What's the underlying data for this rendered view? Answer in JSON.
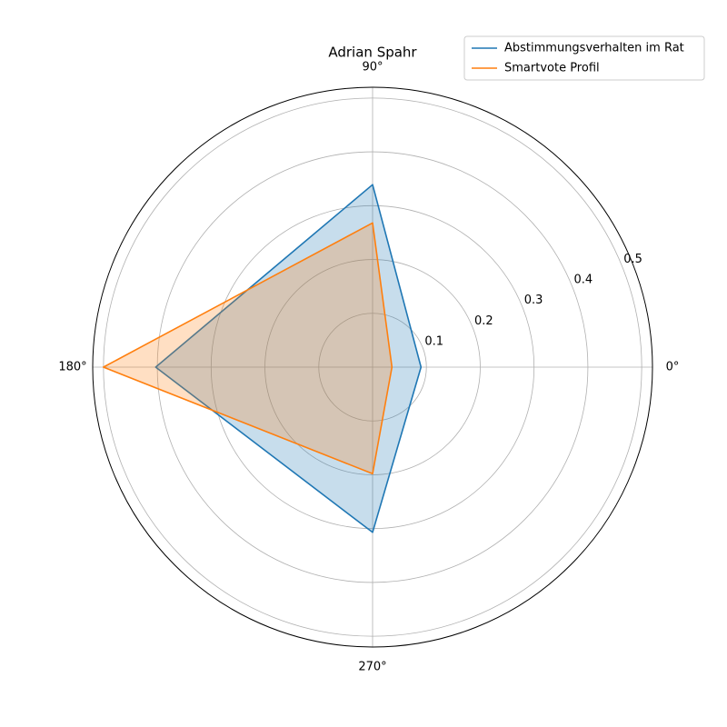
{
  "chart_data": {
    "type": "radar",
    "title": "Adrian Spahr",
    "x": [
      0,
      90,
      180,
      270
    ],
    "xticks": [
      {
        "value": 0,
        "label": "0°"
      },
      {
        "value": 90,
        "label": "90°"
      },
      {
        "value": 180,
        "label": "180°"
      },
      {
        "value": 270,
        "label": "270°"
      }
    ],
    "ylim": [
      0,
      0.52
    ],
    "yticks": [
      0.1,
      0.2,
      0.3,
      0.4,
      0.5
    ],
    "grid": true,
    "fill": true,
    "legend": "upper right",
    "series": [
      {
        "name": "Abstimmungsverhalten im Rat",
        "color": "#1f77b4",
        "values": [
          0.09,
          0.339,
          0.403,
          0.307
        ]
      },
      {
        "name": "Smartvote Profil",
        "color": "#ff7f0e",
        "values": [
          0.036,
          0.268,
          0.5,
          0.198
        ]
      }
    ]
  }
}
